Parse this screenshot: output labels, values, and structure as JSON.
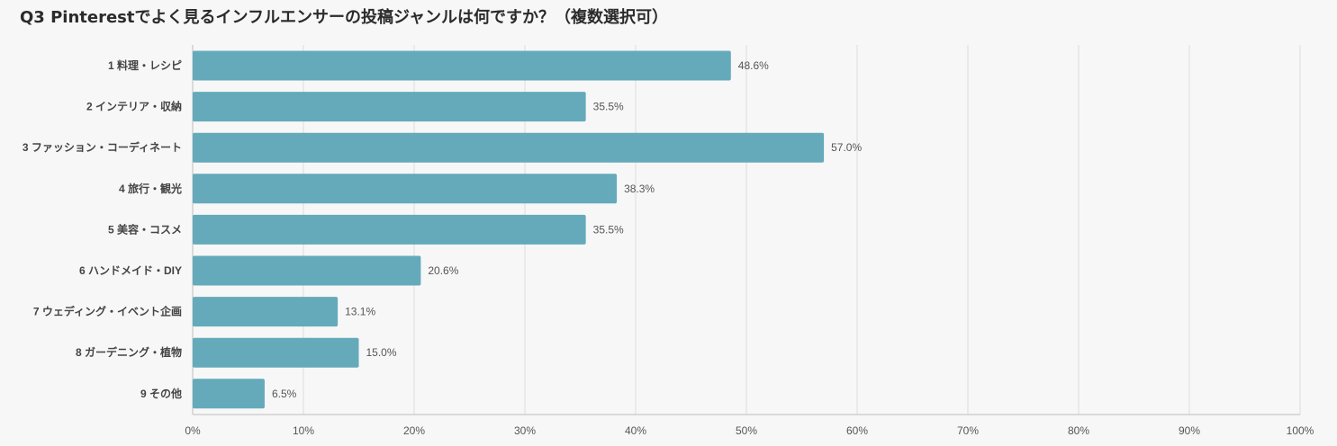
{
  "chart_data": {
    "type": "bar",
    "orientation": "horizontal",
    "title": "Q3 Pinterestでよく見るインフルエンサーの投稿ジャンルは何ですか？（複数選択可）",
    "categories": [
      "1 料理・レシピ",
      "2 インテリア・収納",
      "3 ファッション・コーディネート",
      "4 旅行・観光",
      "5 美容・コスメ",
      "6 ハンドメイド・DIY",
      "7 ウェディング・イベント企画",
      "8 ガーデニング・植物",
      "9 その他"
    ],
    "values": [
      48.6,
      35.5,
      57.0,
      38.3,
      35.5,
      20.6,
      13.1,
      15.0,
      6.5
    ],
    "value_labels": [
      "48.6%",
      "35.5%",
      "57.0%",
      "38.3%",
      "35.5%",
      "20.6%",
      "13.1%",
      "15.0%",
      "6.5%"
    ],
    "xlim": [
      0,
      100
    ],
    "x_ticks": [
      0,
      10,
      20,
      30,
      40,
      50,
      60,
      70,
      80,
      90,
      100
    ],
    "x_tick_labels": [
      "0%",
      "10%",
      "20%",
      "30%",
      "40%",
      "50%",
      "60%",
      "70%",
      "80%",
      "90%",
      "100%"
    ],
    "xlabel": "",
    "ylabel": "",
    "grid": true,
    "bar_color": "#64aabb",
    "grid_color": "#dcdcdc",
    "axis_color": "#bdbdbd"
  }
}
